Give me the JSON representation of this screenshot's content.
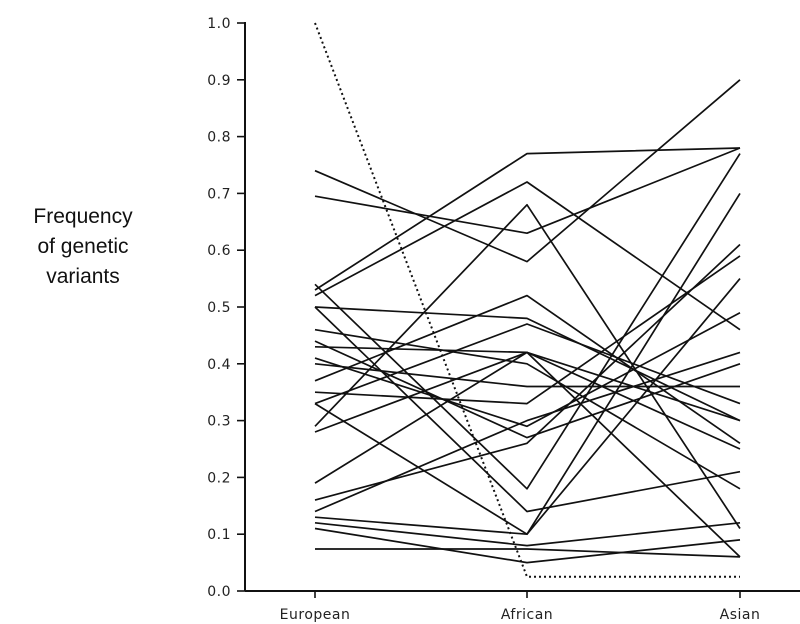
{
  "chart_data": {
    "type": "line",
    "ylabel": [
      "Frequency",
      "of genetic",
      "variants"
    ],
    "categories": [
      "European",
      "African",
      "Asian"
    ],
    "ylim": [
      0,
      1
    ],
    "yticks": [
      "0.0",
      "0.1",
      "0.2",
      "0.3",
      "0.4",
      "0.5",
      "0.6",
      "0.7",
      "0.8",
      "0.9",
      "1.0"
    ],
    "series": [
      {
        "values": [
          0.74,
          0.58,
          0.9
        ],
        "style": "solid"
      },
      {
        "values": [
          0.695,
          0.63,
          0.78
        ],
        "style": "solid"
      },
      {
        "values": [
          0.53,
          0.77,
          0.78
        ],
        "style": "solid"
      },
      {
        "values": [
          0.54,
          0.18,
          0.77
        ],
        "style": "solid"
      },
      {
        "values": [
          0.52,
          0.72,
          0.46
        ],
        "style": "solid"
      },
      {
        "values": [
          0.5,
          0.48,
          0.3
        ],
        "style": "solid"
      },
      {
        "values": [
          0.46,
          0.4,
          0.18
        ],
        "style": "solid"
      },
      {
        "values": [
          0.44,
          0.27,
          0.4
        ],
        "style": "solid"
      },
      {
        "values": [
          0.43,
          0.42,
          0.06
        ],
        "style": "solid"
      },
      {
        "values": [
          0.41,
          0.29,
          0.49
        ],
        "style": "solid"
      },
      {
        "values": [
          0.4,
          0.36,
          0.36
        ],
        "style": "solid"
      },
      {
        "values": [
          0.37,
          0.52,
          0.26
        ],
        "style": "solid"
      },
      {
        "values": [
          0.35,
          0.33,
          0.59
        ],
        "style": "solid"
      },
      {
        "values": [
          0.33,
          0.47,
          0.33
        ],
        "style": "solid"
      },
      {
        "values": [
          0.33,
          0.1,
          0.7
        ],
        "style": "solid"
      },
      {
        "values": [
          0.29,
          0.68,
          0.11
        ],
        "style": "solid"
      },
      {
        "values": [
          0.28,
          0.42,
          0.3
        ],
        "style": "solid"
      },
      {
        "values": [
          0.19,
          0.42,
          0.25
        ],
        "style": "solid"
      },
      {
        "values": [
          0.16,
          0.26,
          0.61
        ],
        "style": "solid"
      },
      {
        "values": [
          0.14,
          0.3,
          0.42
        ],
        "style": "solid"
      },
      {
        "values": [
          0.13,
          0.1,
          0.55
        ],
        "style": "solid"
      },
      {
        "values": [
          0.12,
          0.08,
          0.12
        ],
        "style": "solid"
      },
      {
        "values": [
          0.11,
          0.05,
          0.09
        ],
        "style": "solid"
      },
      {
        "values": [
          0.074,
          0.074,
          0.06
        ],
        "style": "solid"
      },
      {
        "values": [
          0.5,
          0.14,
          0.21
        ],
        "style": "solid"
      },
      {
        "values": [
          1.0,
          0.025,
          0.025
        ],
        "style": "dotted"
      }
    ]
  }
}
